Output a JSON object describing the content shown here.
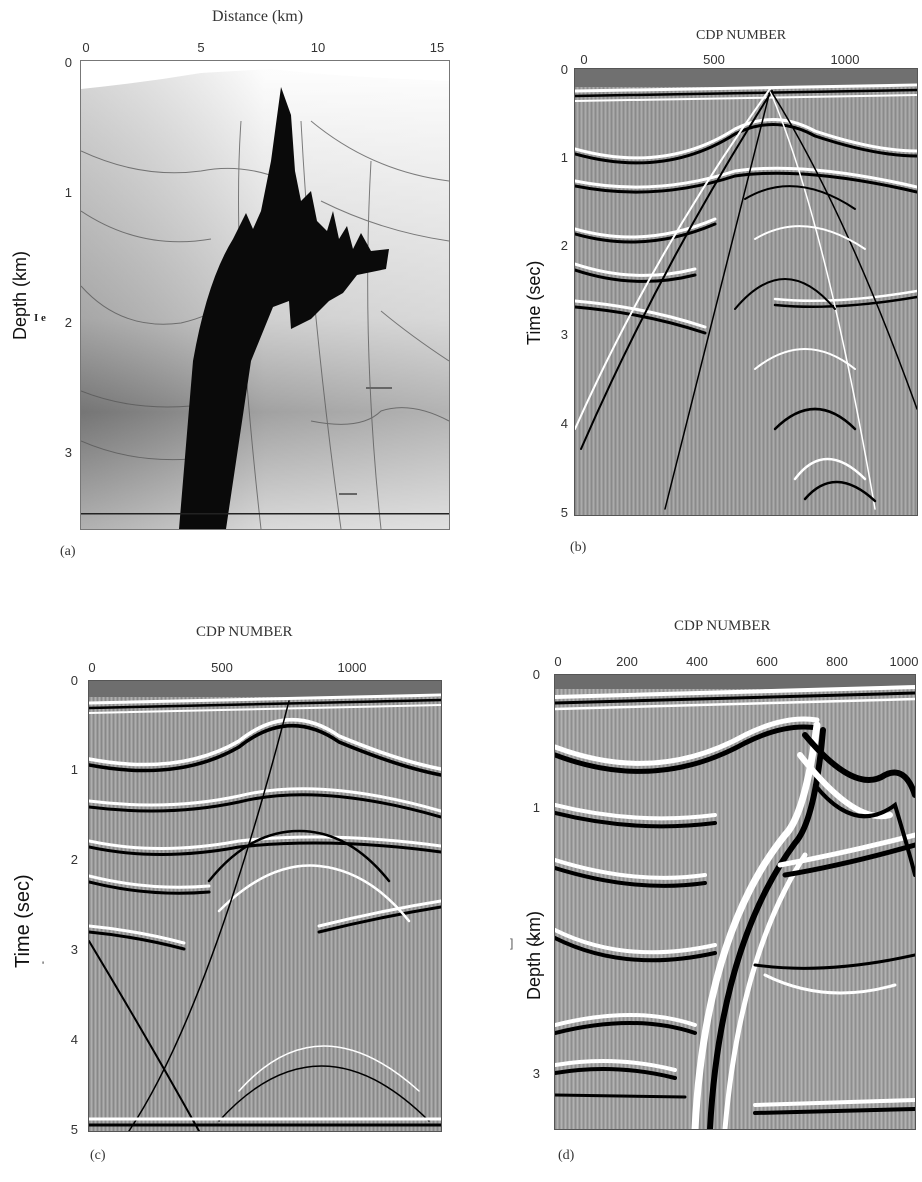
{
  "panels": {
    "a": {
      "label": "(a)",
      "x_title": "Distance (km)",
      "y_title": "Depth (km)",
      "y_annot": "I e",
      "x_ticks": [
        "0",
        "5",
        "10",
        "15"
      ],
      "y_ticks": [
        "0",
        "1",
        "2",
        "3"
      ]
    },
    "b": {
      "label": "(b)",
      "x_title": "CDP NUMBER",
      "y_title": "Time (sec)",
      "x_ticks": [
        "0",
        "500",
        "1000"
      ],
      "y_ticks": [
        "0",
        "1",
        "2",
        "3",
        "4",
        "5"
      ]
    },
    "c": {
      "label": "(c)",
      "x_title": "CDP NUMBER",
      "y_title": "Time (sec)",
      "y_annot": "'",
      "x_ticks": [
        "0",
        "500",
        "1000"
      ],
      "y_ticks": [
        "0",
        "1",
        "2",
        "3",
        "4",
        "5"
      ]
    },
    "d": {
      "label": "(d)",
      "x_title": "CDP NUMBER",
      "y_title": "Depth (km)",
      "y_annot": "]",
      "x_ticks": [
        "0",
        "200",
        "400",
        "600",
        "800",
        "1000"
      ],
      "y_ticks": [
        "0",
        "1",
        "2",
        "3"
      ]
    }
  }
}
